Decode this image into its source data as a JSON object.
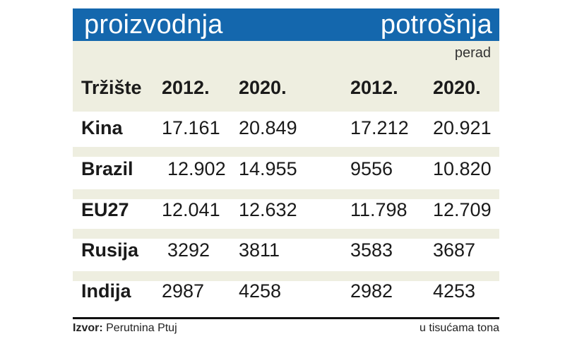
{
  "header": {
    "left_title": "proizvodnja",
    "right_title": "potrošnja",
    "subtitle": "perad",
    "bar_color": "#1467ad",
    "band_color": "#eeeee0"
  },
  "table": {
    "columns": [
      "Tržište",
      "2012.",
      "2020.",
      "2012.",
      "2020."
    ],
    "rows": [
      [
        "Kina",
        "17.161",
        "20.849",
        "17.212",
        "20.921"
      ],
      [
        "Brazil",
        "12.902",
        "14.955",
        "9556",
        "10.820"
      ],
      [
        "EU27",
        "12.041",
        "12.632",
        "11.798",
        "12.709"
      ],
      [
        "Rusija",
        "3292",
        "3811",
        "3583",
        "3687"
      ],
      [
        "Indija",
        "2987",
        "4258",
        "2982",
        "4253"
      ]
    ]
  },
  "footer": {
    "source_label": "Izvor:",
    "source_value": "Perutnina Ptuj",
    "unit_note": "u tisućama tona"
  }
}
